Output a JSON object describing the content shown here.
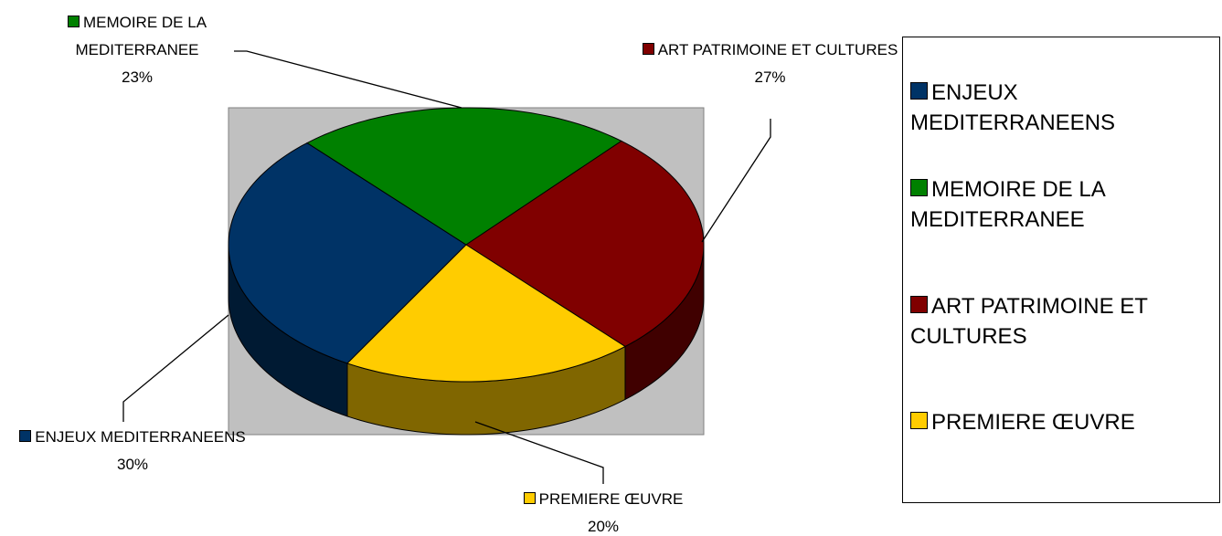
{
  "chart_data": {
    "type": "pie",
    "categories": [
      "ENJEUX MEDITERRANEENS",
      "MEMOIRE DE LA MEDITERRANEE",
      "ART PATRIMOINE ET CULTURES",
      "PREMIERE ŒUVRE"
    ],
    "values": [
      30,
      23,
      27,
      20
    ],
    "value_labels": [
      "30%",
      "23%",
      "27%",
      "20%"
    ],
    "colors": [
      "#003366",
      "#008000",
      "#800000",
      "#ffcc00"
    ],
    "legend": "right"
  }
}
